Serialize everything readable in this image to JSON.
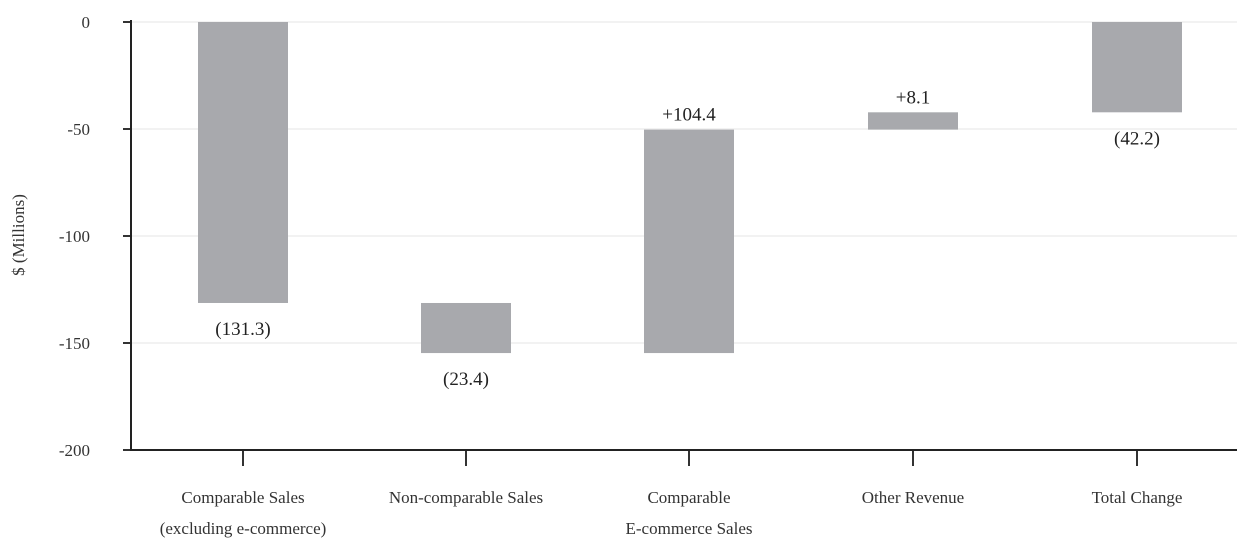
{
  "chart_data": {
    "type": "bar",
    "subtype": "waterfall",
    "title": "",
    "xlabel": "",
    "ylabel": "$ (Millions)",
    "ylim": [
      -200,
      0
    ],
    "yticks": [
      0,
      -50,
      -100,
      -150,
      -200
    ],
    "grid": true,
    "legend": "none",
    "bar_color": "#a8a9ad",
    "categories": [
      [
        "Comparable Sales",
        "(excluding e-commerce)"
      ],
      [
        "Non-comparable Sales"
      ],
      [
        "Comparable",
        "E-commerce Sales"
      ],
      [
        "Other Revenue"
      ],
      [
        "Total Change"
      ]
    ],
    "bars": [
      {
        "start": 0,
        "end": -131.3,
        "label": "(131.3)",
        "label_pos": "below"
      },
      {
        "start": -131.3,
        "end": -154.7,
        "label": "(23.4)",
        "label_pos": "below"
      },
      {
        "start": -154.7,
        "end": -50.3,
        "label": "+104.4",
        "label_pos": "above"
      },
      {
        "start": -50.3,
        "end": -42.2,
        "label": "+8.1",
        "label_pos": "above"
      },
      {
        "start": 0,
        "end": -42.2,
        "label": "(42.2)",
        "label_pos": "below"
      }
    ]
  }
}
